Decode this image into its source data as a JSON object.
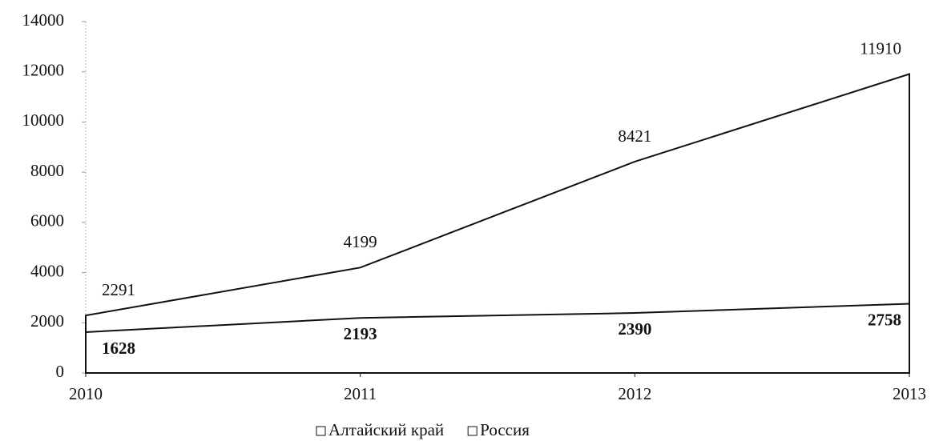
{
  "chart_data": {
    "type": "area",
    "categories": [
      "2010",
      "2011",
      "2012",
      "2013"
    ],
    "series": [
      {
        "name": "Россия",
        "color": "#ffffff",
        "values": [
          2291,
          4199,
          8421,
          11910
        ]
      },
      {
        "name": "Алтайский край",
        "color": "#ffffff",
        "values": [
          1628,
          2193,
          2390,
          2758
        ]
      }
    ],
    "ylim": [
      0,
      14000
    ],
    "yticks": [
      0,
      2000,
      4000,
      6000,
      8000,
      10000,
      12000,
      14000
    ],
    "grid": false,
    "legend": "bottom"
  }
}
